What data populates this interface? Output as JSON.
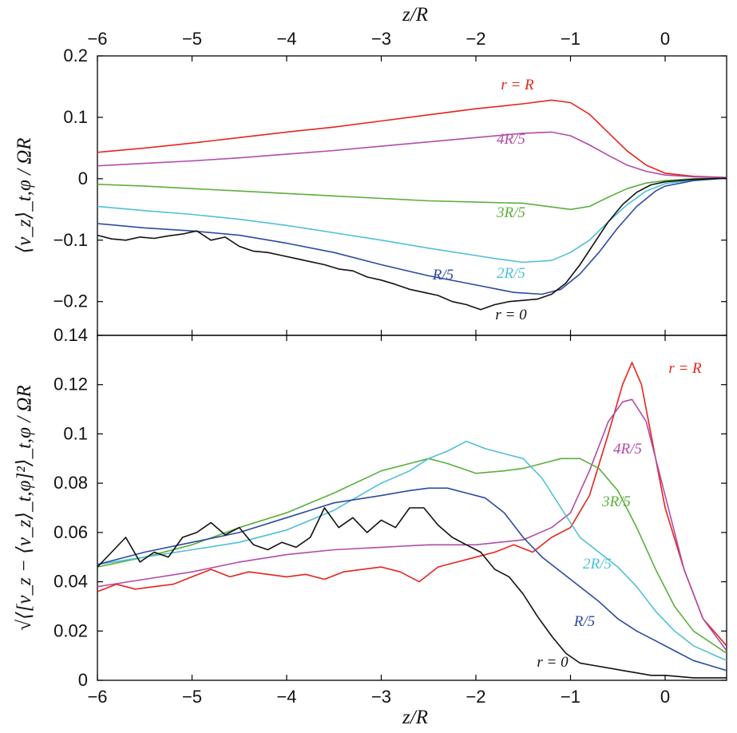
{
  "chart_data": [
    {
      "type": "line",
      "title": "",
      "xlabel": "z/R",
      "ylabel": "⟨v_z⟩_t,φ / ΩR",
      "xlim": [
        -6,
        0.65
      ],
      "ylim": [
        -0.255,
        0.2
      ],
      "xticks": [
        -6,
        -5,
        -4,
        -3,
        -2,
        -1,
        0
      ],
      "xtick_labels": [
        "−6",
        "−5",
        "−4",
        "−3",
        "−2",
        "−1",
        "0"
      ],
      "yticks": [
        -0.2,
        -0.1,
        0,
        0.1,
        0.2
      ],
      "ytick_labels": [
        "−0.2",
        "−0.1",
        "0",
        "0.1",
        "0.2"
      ],
      "series": [
        {
          "name": "r = R",
          "color": "#e8231c",
          "x": [
            -6,
            -5.5,
            -5,
            -4.5,
            -4,
            -3.5,
            -3,
            -2.5,
            -2,
            -1.5,
            -1.2,
            -1,
            -0.8,
            -0.6,
            -0.4,
            -0.2,
            0,
            0.3,
            0.65
          ],
          "y": [
            0.043,
            0.05,
            0.058,
            0.067,
            0.076,
            0.084,
            0.094,
            0.104,
            0.114,
            0.122,
            0.128,
            0.124,
            0.105,
            0.075,
            0.045,
            0.022,
            0.009,
            0.004,
            0.002
          ]
        },
        {
          "name": "4R/5",
          "color": "#b24ba8",
          "x": [
            -6,
            -5.5,
            -5,
            -4.5,
            -4,
            -3.5,
            -3,
            -2.5,
            -2,
            -1.5,
            -1.2,
            -1,
            -0.8,
            -0.6,
            -0.4,
            -0.2,
            0,
            0.3,
            0.65
          ],
          "y": [
            0.021,
            0.025,
            0.029,
            0.034,
            0.04,
            0.046,
            0.053,
            0.06,
            0.067,
            0.074,
            0.076,
            0.07,
            0.055,
            0.038,
            0.022,
            0.012,
            0.006,
            0.003,
            0.002
          ]
        },
        {
          "name": "3R/5",
          "color": "#5aaf3c",
          "x": [
            -6,
            -5.5,
            -5,
            -4.5,
            -4,
            -3.5,
            -3,
            -2.5,
            -2,
            -1.5,
            -1.2,
            -1,
            -0.8,
            -0.6,
            -0.4,
            -0.2,
            0,
            0.3,
            0.65
          ],
          "y": [
            -0.009,
            -0.012,
            -0.016,
            -0.02,
            -0.024,
            -0.028,
            -0.032,
            -0.036,
            -0.038,
            -0.04,
            -0.046,
            -0.05,
            -0.045,
            -0.03,
            -0.016,
            -0.007,
            -0.003,
            0,
            0.001
          ]
        },
        {
          "name": "2R/5",
          "color": "#4fc0d6",
          "x": [
            -6,
            -5.5,
            -5,
            -4.5,
            -4,
            -3.5,
            -3,
            -2.5,
            -2,
            -1.8,
            -1.5,
            -1.2,
            -1,
            -0.8,
            -0.6,
            -0.4,
            -0.2,
            0,
            0.3,
            0.65
          ],
          "y": [
            -0.045,
            -0.052,
            -0.058,
            -0.066,
            -0.076,
            -0.088,
            -0.1,
            -0.113,
            -0.125,
            -0.13,
            -0.136,
            -0.133,
            -0.12,
            -0.1,
            -0.07,
            -0.042,
            -0.02,
            -0.008,
            -0.002,
            0.001
          ]
        },
        {
          "name": "R/5",
          "color": "#2c4aa0",
          "x": [
            -6,
            -5.5,
            -5,
            -4.5,
            -4,
            -3.5,
            -3,
            -2.5,
            -2,
            -1.6,
            -1.3,
            -1.1,
            -0.9,
            -0.7,
            -0.5,
            -0.3,
            -0.1,
            0,
            0.3,
            0.65
          ],
          "y": [
            -0.073,
            -0.08,
            -0.085,
            -0.092,
            -0.105,
            -0.12,
            -0.14,
            -0.158,
            -0.173,
            -0.185,
            -0.188,
            -0.18,
            -0.155,
            -0.12,
            -0.08,
            -0.045,
            -0.02,
            -0.012,
            -0.003,
            0.001
          ]
        },
        {
          "name": "r = 0",
          "color": "#111111",
          "x": [
            -6,
            -5.85,
            -5.7,
            -5.55,
            -5.4,
            -5.25,
            -5.1,
            -4.95,
            -4.8,
            -4.65,
            -4.5,
            -4.35,
            -4.2,
            -4.05,
            -3.9,
            -3.75,
            -3.6,
            -3.45,
            -3.3,
            -3.15,
            -3,
            -2.85,
            -2.7,
            -2.55,
            -2.4,
            -2.25,
            -2.1,
            -1.95,
            -1.8,
            -1.65,
            -1.5,
            -1.35,
            -1.2,
            -1.05,
            -0.9,
            -0.75,
            -0.6,
            -0.45,
            -0.3,
            -0.15,
            0,
            0.3,
            0.65
          ],
          "y": [
            -0.092,
            -0.098,
            -0.1,
            -0.095,
            -0.097,
            -0.093,
            -0.09,
            -0.085,
            -0.1,
            -0.095,
            -0.11,
            -0.118,
            -0.12,
            -0.125,
            -0.13,
            -0.135,
            -0.14,
            -0.147,
            -0.15,
            -0.16,
            -0.165,
            -0.172,
            -0.18,
            -0.185,
            -0.19,
            -0.2,
            -0.205,
            -0.213,
            -0.205,
            -0.2,
            -0.198,
            -0.196,
            -0.188,
            -0.17,
            -0.14,
            -0.105,
            -0.07,
            -0.042,
            -0.022,
            -0.01,
            -0.005,
            -0.001,
            0.001
          ]
        }
      ],
      "labels": [
        {
          "text": "r = R",
          "series": "r = R"
        },
        {
          "text": "4R/5",
          "series": "4R/5"
        },
        {
          "text": "3R/5",
          "series": "3R/5"
        },
        {
          "text": "2R/5",
          "series": "2R/5"
        },
        {
          "text": "R/5",
          "series": "R/5"
        },
        {
          "text": "r = 0",
          "series": "r = 0"
        }
      ]
    },
    {
      "type": "line",
      "title": "",
      "xlabel": "z/R",
      "ylabel": "√⟨[v_z − ⟨v_z⟩_t,φ]²⟩_t,φ / ΩR",
      "xlim": [
        -6,
        0.65
      ],
      "ylim": [
        0,
        0.14
      ],
      "xticks": [
        -6,
        -5,
        -4,
        -3,
        -2,
        -1,
        0
      ],
      "xtick_labels": [
        "−6",
        "−5",
        "−4",
        "−3",
        "−2",
        "−1",
        "0"
      ],
      "yticks": [
        0,
        0.02,
        0.04,
        0.06,
        0.08,
        0.1,
        0.12,
        0.14
      ],
      "ytick_labels": [
        "0",
        "0.02",
        "0.04",
        "0.06",
        "0.08",
        "0.1",
        "0.12",
        "0.14"
      ],
      "series": [
        {
          "name": "r = R",
          "color": "#e8231c",
          "x": [
            -6,
            -5.8,
            -5.6,
            -5.4,
            -5.2,
            -5,
            -4.8,
            -4.6,
            -4.4,
            -4.2,
            -4,
            -3.8,
            -3.6,
            -3.4,
            -3.2,
            -3,
            -2.8,
            -2.6,
            -2.4,
            -2.2,
            -2,
            -1.8,
            -1.6,
            -1.4,
            -1.2,
            -1,
            -0.8,
            -0.6,
            -0.45,
            -0.35,
            -0.25,
            -0.1,
            0,
            0.2,
            0.4,
            0.65
          ],
          "y": [
            0.036,
            0.039,
            0.037,
            0.038,
            0.039,
            0.042,
            0.045,
            0.042,
            0.044,
            0.043,
            0.042,
            0.043,
            0.041,
            0.044,
            0.045,
            0.046,
            0.044,
            0.04,
            0.046,
            0.048,
            0.05,
            0.052,
            0.055,
            0.052,
            0.058,
            0.062,
            0.075,
            0.1,
            0.12,
            0.129,
            0.12,
            0.09,
            0.07,
            0.045,
            0.025,
            0.014
          ]
        },
        {
          "name": "4R/5",
          "color": "#b24ba8",
          "x": [
            -6,
            -5.5,
            -5,
            -4.5,
            -4,
            -3.5,
            -3,
            -2.5,
            -2,
            -1.5,
            -1.2,
            -1,
            -0.8,
            -0.6,
            -0.45,
            -0.35,
            -0.2,
            0,
            0.2,
            0.4,
            0.65
          ],
          "y": [
            0.038,
            0.041,
            0.044,
            0.048,
            0.051,
            0.053,
            0.054,
            0.055,
            0.055,
            0.057,
            0.062,
            0.068,
            0.085,
            0.105,
            0.113,
            0.114,
            0.105,
            0.075,
            0.045,
            0.025,
            0.012
          ]
        },
        {
          "name": "3R/5",
          "color": "#5aaf3c",
          "x": [
            -6,
            -5.5,
            -5,
            -4.5,
            -4,
            -3.5,
            -3,
            -2.7,
            -2.5,
            -2.3,
            -2,
            -1.7,
            -1.5,
            -1.3,
            -1.1,
            -0.9,
            -0.7,
            -0.5,
            -0.3,
            -0.1,
            0.1,
            0.3,
            0.65
          ],
          "y": [
            0.046,
            0.05,
            0.055,
            0.062,
            0.068,
            0.076,
            0.085,
            0.088,
            0.09,
            0.088,
            0.084,
            0.085,
            0.086,
            0.088,
            0.09,
            0.09,
            0.086,
            0.077,
            0.062,
            0.045,
            0.03,
            0.02,
            0.011
          ]
        },
        {
          "name": "2R/5",
          "color": "#4fc0d6",
          "x": [
            -6,
            -5.5,
            -5,
            -4.5,
            -4,
            -3.5,
            -3,
            -2.7,
            -2.5,
            -2.3,
            -2.1,
            -1.9,
            -1.7,
            -1.5,
            -1.3,
            -1.1,
            -0.9,
            -0.7,
            -0.5,
            -0.3,
            -0.1,
            0.1,
            0.3,
            0.65
          ],
          "y": [
            0.047,
            0.05,
            0.053,
            0.056,
            0.061,
            0.069,
            0.08,
            0.085,
            0.09,
            0.093,
            0.097,
            0.094,
            0.092,
            0.09,
            0.082,
            0.07,
            0.058,
            0.052,
            0.046,
            0.038,
            0.028,
            0.02,
            0.014,
            0.008
          ]
        },
        {
          "name": "R/5",
          "color": "#2c4aa0",
          "x": [
            -6,
            -5.5,
            -5,
            -4.5,
            -4,
            -3.5,
            -3,
            -2.7,
            -2.5,
            -2.3,
            -2.1,
            -1.9,
            -1.7,
            -1.5,
            -1.3,
            -1.1,
            -0.9,
            -0.7,
            -0.5,
            -0.3,
            -0.1,
            0.1,
            0.3,
            0.65
          ],
          "y": [
            0.047,
            0.052,
            0.056,
            0.06,
            0.066,
            0.072,
            0.075,
            0.077,
            0.078,
            0.078,
            0.076,
            0.074,
            0.068,
            0.058,
            0.05,
            0.044,
            0.038,
            0.032,
            0.025,
            0.02,
            0.016,
            0.012,
            0.008,
            0.004
          ]
        },
        {
          "name": "r = 0",
          "color": "#111111",
          "x": [
            -6,
            -5.85,
            -5.7,
            -5.55,
            -5.4,
            -5.25,
            -5.1,
            -4.95,
            -4.8,
            -4.65,
            -4.5,
            -4.35,
            -4.2,
            -4.05,
            -3.9,
            -3.75,
            -3.6,
            -3.45,
            -3.3,
            -3.15,
            -3,
            -2.85,
            -2.7,
            -2.55,
            -2.4,
            -2.25,
            -2.1,
            -1.95,
            -1.8,
            -1.65,
            -1.5,
            -1.35,
            -1.2,
            -1.05,
            -0.9,
            -0.75,
            -0.6,
            -0.45,
            -0.3,
            -0.15,
            0,
            0.3,
            0.65
          ],
          "y": [
            0.046,
            0.052,
            0.058,
            0.048,
            0.052,
            0.05,
            0.058,
            0.06,
            0.064,
            0.059,
            0.062,
            0.055,
            0.053,
            0.056,
            0.054,
            0.058,
            0.07,
            0.062,
            0.066,
            0.06,
            0.065,
            0.062,
            0.07,
            0.07,
            0.063,
            0.058,
            0.055,
            0.052,
            0.045,
            0.042,
            0.035,
            0.026,
            0.018,
            0.011,
            0.007,
            0.006,
            0.005,
            0.004,
            0.003,
            0.002,
            0.002,
            0.001,
            0.001
          ]
        }
      ],
      "labels": [
        {
          "text": "r = R",
          "series": "r = R"
        },
        {
          "text": "4R/5",
          "series": "4R/5"
        },
        {
          "text": "3R/5",
          "series": "3R/5"
        },
        {
          "text": "2R/5",
          "series": "2R/5"
        },
        {
          "text": "R/5",
          "series": "R/5"
        },
        {
          "text": "r = 0",
          "series": "r = 0"
        }
      ]
    }
  ],
  "top_axis_label": "z/R"
}
